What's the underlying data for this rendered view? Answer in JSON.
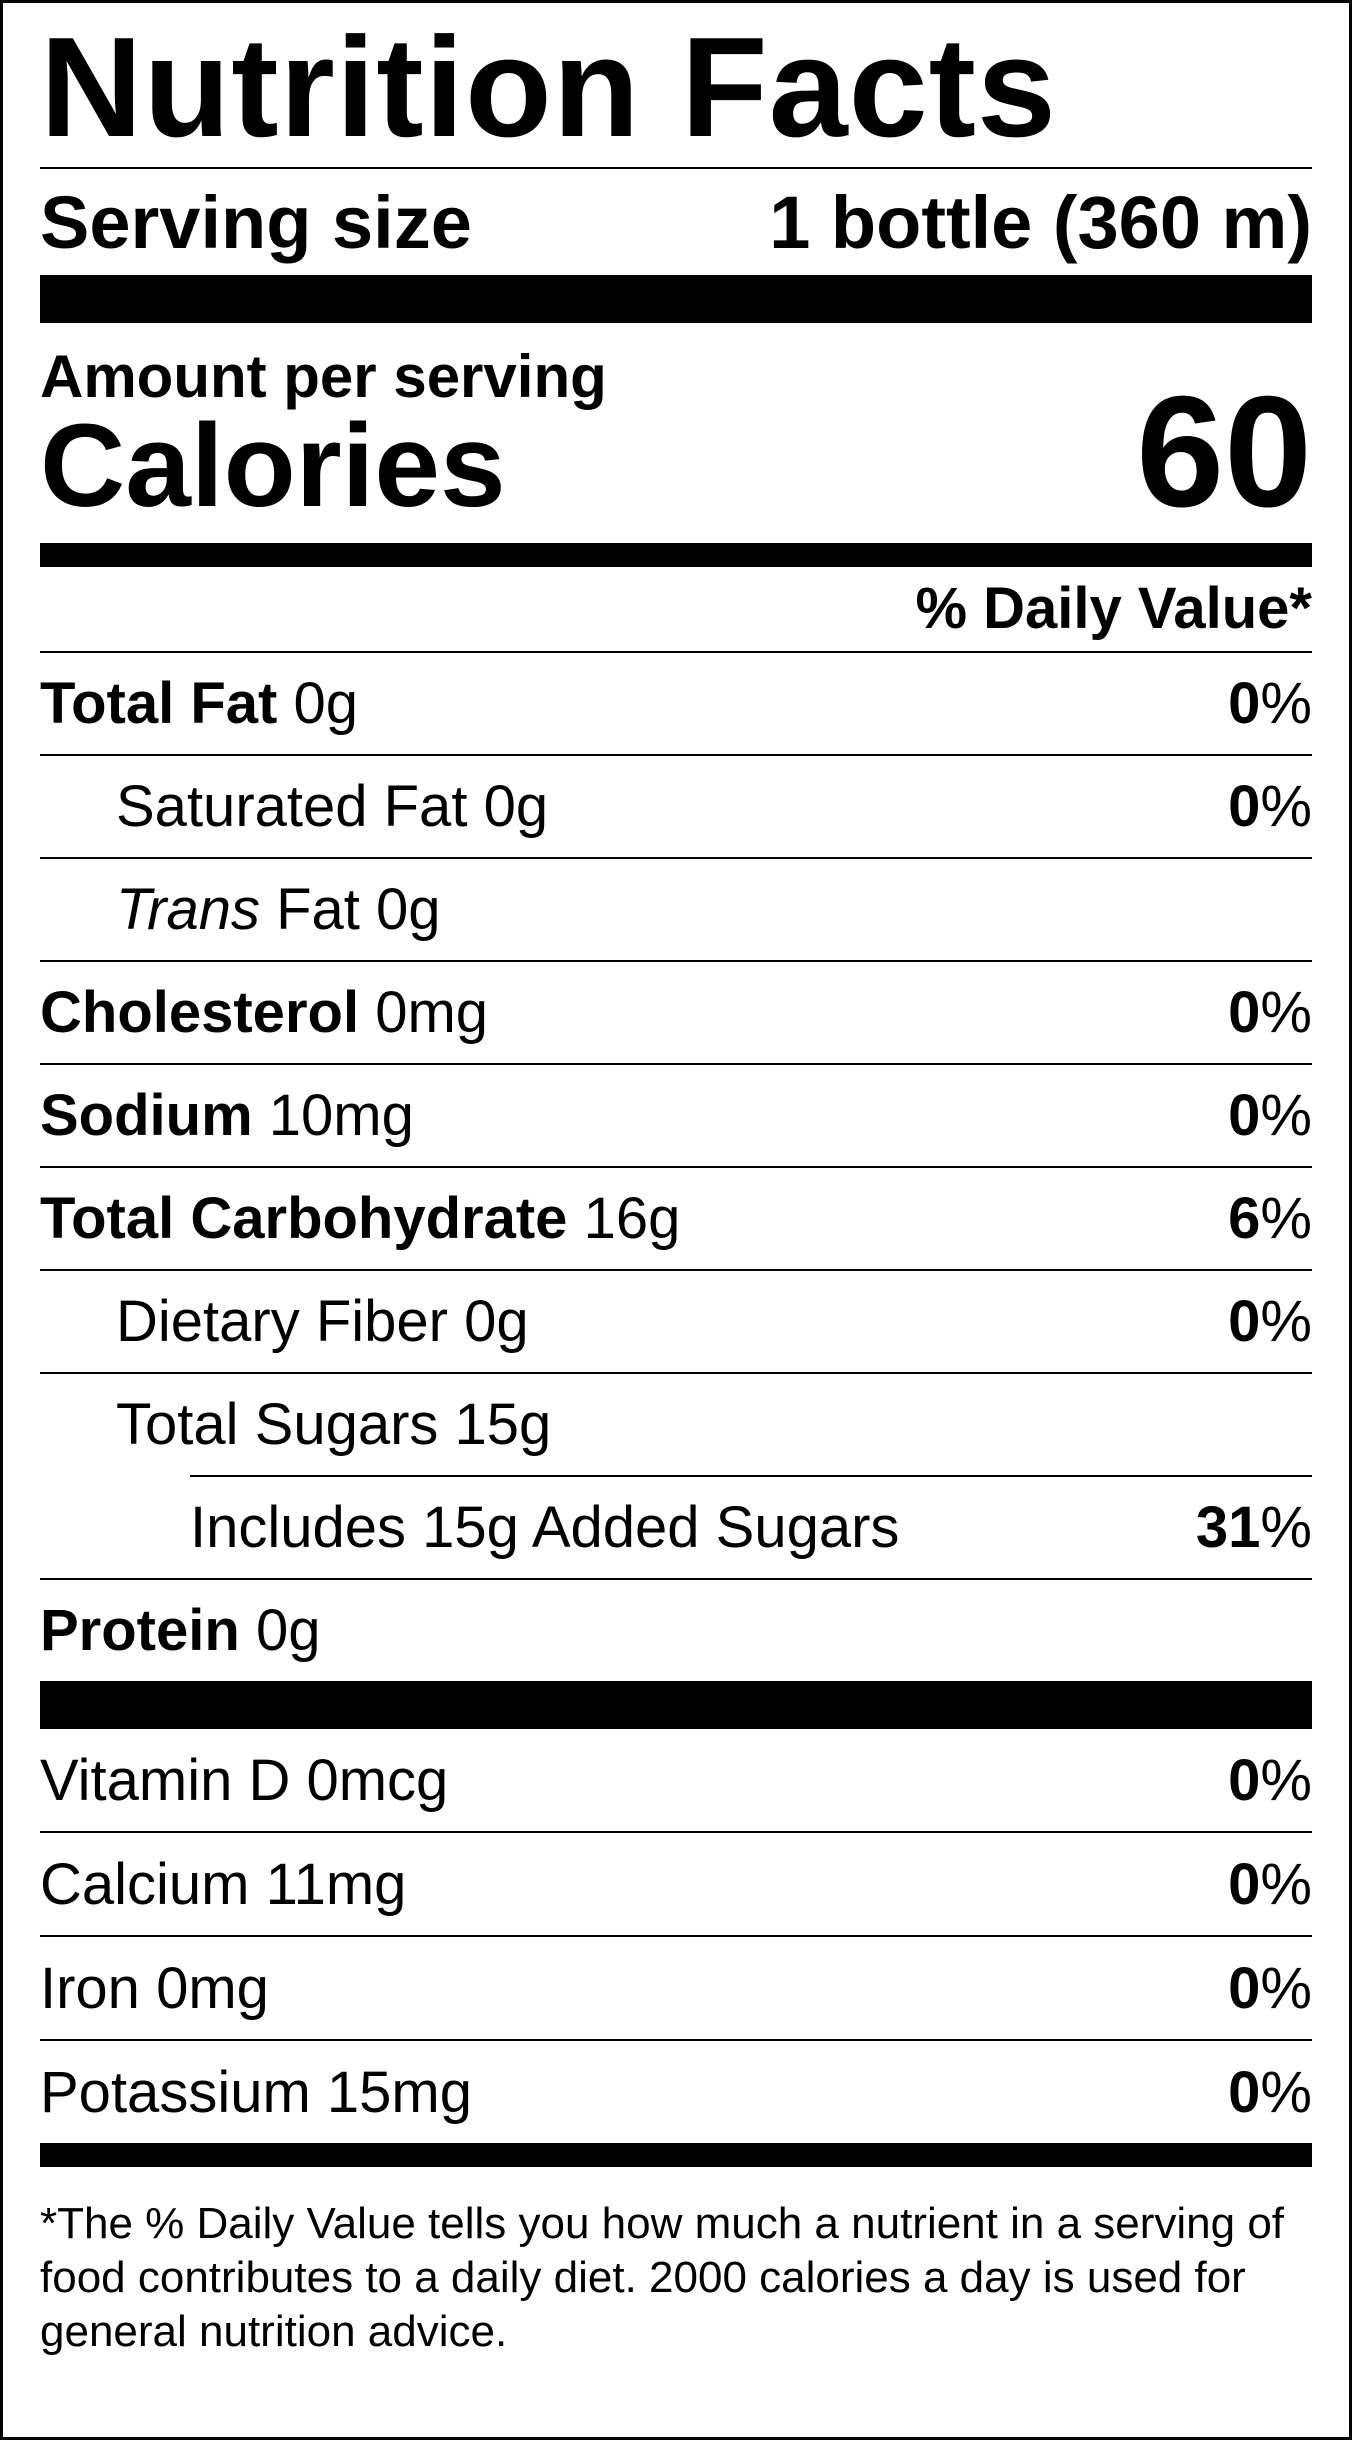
{
  "title": "Nutrition Facts",
  "serving": {
    "label": "Serving size",
    "value": "1 bottle (360 m)"
  },
  "amount_per_serving": "Amount per serving",
  "calories": {
    "label": "Calories",
    "value": "60"
  },
  "daily_value_header": "% Daily Value*",
  "nutrients": [
    {
      "name": "Total Fat",
      "amount": "0g",
      "dv": "0",
      "bold": true
    },
    {
      "name": "Saturated Fat",
      "amount": "0g",
      "dv": "0",
      "indent": 1
    },
    {
      "name_italic": "Trans",
      "name": "Fat",
      "amount": "0g",
      "dv": "",
      "indent": 1
    },
    {
      "name": "Cholesterol",
      "amount": "0mg",
      "dv": "0",
      "bold": true
    },
    {
      "name": "Sodium",
      "amount": "10mg",
      "dv": "0",
      "bold": true
    },
    {
      "name": "Total Carbohydrate",
      "amount": "16g",
      "dv": "6",
      "bold": true
    },
    {
      "name": "Dietary Fiber",
      "amount": "0g",
      "dv": "0",
      "indent": 1
    },
    {
      "name": "Total Sugars",
      "amount": "15g",
      "dv": "",
      "indent": 1
    },
    {
      "name": "Includes 15g Added Sugars",
      "amount": "",
      "dv": "31",
      "indent": 2
    },
    {
      "name": "Protein",
      "amount": "0g",
      "dv": "",
      "bold": true
    }
  ],
  "vitamins": [
    {
      "name": "Vitamin D",
      "amount": "0mcg",
      "dv": "0"
    },
    {
      "name": "Calcium",
      "amount": "11mg",
      "dv": "0"
    },
    {
      "name": "Iron",
      "amount": "0mg",
      "dv": "0"
    },
    {
      "name": "Potassium",
      "amount": "15mg",
      "dv": "0"
    }
  ],
  "percent_sign": "%",
  "footnote": "*The % Daily Value tells you how much a nutrient in a serving of food contributes to a daily diet. 2000 calories a day is used for general nutrition advice."
}
